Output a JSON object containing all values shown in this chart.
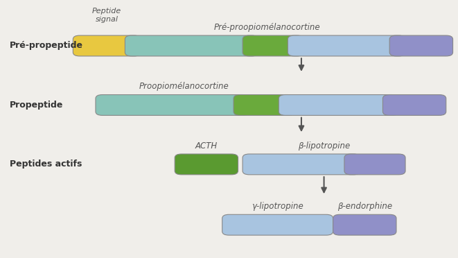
{
  "bg_color": "#f0eeea",
  "colors": {
    "yellow": "#e8c840",
    "teal": "#88c4b8",
    "green": "#6aaa3c",
    "light_blue": "#a8c4e0",
    "purple": "#9090c8",
    "green_dark": "#5a9a30"
  },
  "text_color": "#333333",
  "label_color": "#555555",
  "row1_label": "Pré-propeptide",
  "row2_label": "Propeptide",
  "row3_label": "Peptides actifs",
  "ann1": "Peptide\nsignal",
  "ann2": "Pré-proopiomélanocortine",
  "ann3": "Proopiomélanocortine",
  "ann4": "ACTH",
  "ann5": "β-lipotropine",
  "ann6": "γ-lipotropine",
  "ann7": "β-endorphine"
}
